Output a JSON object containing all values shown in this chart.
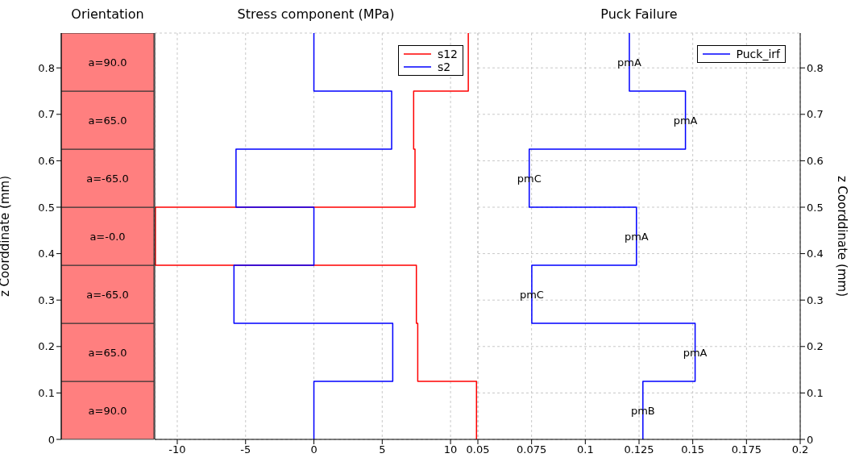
{
  "chart_data": [
    {
      "type": "bar",
      "title": "Orientation",
      "stacked": true,
      "categories": [
        null
      ],
      "ylabel": "z Coorddinate (mm)",
      "ylim": [
        0,
        0.875
      ],
      "yticks": [
        0,
        0.1,
        0.2,
        0.3,
        0.4,
        0.5,
        0.6,
        0.7,
        0.8
      ],
      "tick_labels": "y",
      "series": [
        {
          "color": "#ff7f7f",
          "values": [
            0.125
          ]
        },
        {
          "color": "#ff7f7f",
          "values": [
            0.125
          ]
        },
        {
          "color": "#ff7f7f",
          "values": [
            0.125
          ]
        },
        {
          "color": "#ff7f7f",
          "values": [
            0.125
          ]
        },
        {
          "color": "#ff7f7f",
          "values": [
            0.125
          ]
        },
        {
          "color": "#ff7f7f",
          "values": [
            0.125
          ]
        },
        {
          "color": "#ff7f7f",
          "values": [
            0.125
          ]
        }
      ],
      "annotations": [
        "a=90.0",
        "a=65.0",
        "a=-65.0",
        "a=-0.0",
        "a=-65.0",
        "a=65.0",
        "a=90.0"
      ]
    },
    {
      "type": "line",
      "title": "Stress component (MPa)",
      "xlim": [
        -11.65,
        12.0
      ],
      "xticks": [
        -10,
        -5,
        0,
        5,
        10
      ],
      "ylim": [
        0,
        0.875
      ],
      "yticks": [
        0,
        0.1,
        0.2,
        0.3,
        0.4,
        0.5,
        0.6,
        0.7,
        0.8
      ],
      "tick_labels": "x",
      "grid": true,
      "legend": "top right",
      "series": [
        {
          "name": "s12",
          "color": "#ff0000",
          "x": [
            11.9,
            11.9,
            7.6,
            7.6,
            7.5,
            7.5,
            -11.6,
            -11.6,
            7.4,
            7.4,
            7.3,
            7.3,
            11.3,
            11.3
          ],
          "values": [
            0,
            0.125,
            0.125,
            0.25,
            0.25,
            0.375,
            0.375,
            0.5,
            0.5,
            0.625,
            0.625,
            0.75,
            0.75,
            0.875
          ]
        },
        {
          "name": "s2",
          "color": "#0000ff",
          "x": [
            0,
            0,
            5.77,
            5.77,
            -5.85,
            -5.85,
            0,
            0,
            -5.7,
            -5.7,
            5.69,
            5.69,
            0,
            0
          ],
          "values": [
            0,
            0.125,
            0.125,
            0.25,
            0.25,
            0.375,
            0.375,
            0.5,
            0.5,
            0.625,
            0.625,
            0.75,
            0.75,
            0.875
          ]
        }
      ]
    },
    {
      "type": "line",
      "title": "Puck Failure",
      "xlim": [
        0.05,
        0.2
      ],
      "xticks": [
        0.05,
        0.075,
        0.1,
        0.125,
        0.15,
        0.175,
        0.2
      ],
      "ylim": [
        0,
        0.875
      ],
      "yticks": [
        0,
        0.1,
        0.2,
        0.3,
        0.4,
        0.5,
        0.6,
        0.7,
        0.8
      ],
      "ylabel": "z Coorddinate (mm)",
      "grid": true,
      "legend": "top right",
      "series": [
        {
          "name": "Puck_irf",
          "color": "#0000ff",
          "x": [
            0.1268,
            0.1268,
            0.1511,
            0.1511,
            0.0751,
            0.0751,
            0.1238,
            0.1238,
            0.0739,
            0.0739,
            0.1466,
            0.1466,
            0.1205,
            0.1205
          ],
          "values": [
            0,
            0.125,
            0.125,
            0.25,
            0.25,
            0.375,
            0.375,
            0.5,
            0.5,
            0.625,
            0.625,
            0.75,
            0.75,
            0.875
          ]
        }
      ],
      "annotations": [
        {
          "text": "pmB",
          "x": 0.1268,
          "y": 0.0625
        },
        {
          "text": "pmA",
          "x": 0.1511,
          "y": 0.1875
        },
        {
          "text": "pmC",
          "x": 0.0751,
          "y": 0.3125
        },
        {
          "text": "pmA",
          "x": 0.1238,
          "y": 0.4375
        },
        {
          "text": "pmC",
          "x": 0.0739,
          "y": 0.5625
        },
        {
          "text": "pmA",
          "x": 0.1466,
          "y": 0.6875
        },
        {
          "text": "pmA",
          "x": 0.1205,
          "y": 0.8125
        }
      ]
    }
  ]
}
